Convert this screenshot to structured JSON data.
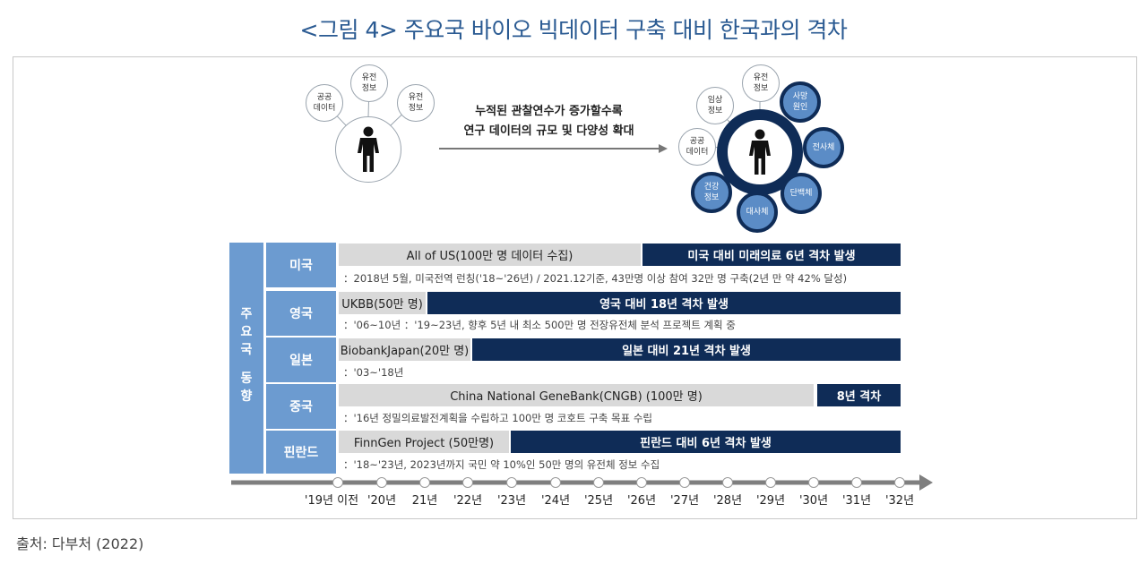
{
  "title": "<그림 4> 주요국 바이오 빅데이터 구축 대비 한국과의 격차",
  "source": "출처: 다부처 (2022)",
  "left_cluster": {
    "bubbles": [
      "공공\n데이터",
      "유전\n정보",
      "유전\n정보"
    ]
  },
  "middle_message": {
    "line1": "누적된 관찰연수가 증가할수록",
    "line2": "연구 데이터의 규모 및 다양성 확대"
  },
  "right_cluster": {
    "white_bubbles": [
      "임상\n정보",
      "유전\n정보",
      "공공\n데이터"
    ],
    "dark_bubbles": [
      "사망\n원인",
      "전사체",
      "단백체",
      "대사체",
      "건강\n정보"
    ]
  },
  "side_label": [
    "주",
    "요",
    "국",
    "",
    "동",
    "향"
  ],
  "rows": [
    {
      "country": "미국",
      "grey": "All of US(100만 명 데이터 수집)",
      "navy": "미국 대비 미래의료 6년 격차 발생",
      "note": "：2018년 5월, 미국전역 런칭('18~'26년) /  2021.12기준, 43만명 이상 참여 32만 명 구축(2년 만 약 42% 달성)"
    },
    {
      "country": "영국",
      "grey": "UKBB(50만 명)",
      "navy": "영국 대비 18년 격차 발생",
      "note": "：'06~10년      ：'19~23년, 향후 5년 내 최소 500만 명 전장유전체 분석 프로젝트 계획 중"
    },
    {
      "country": "일본",
      "grey": "BiobankJapan(20만 명)",
      "navy": "일본 대비 21년 격차 발생",
      "note": "：'03~'18년"
    },
    {
      "country": "중국",
      "grey": "China National GeneBank(CNGB) (100만 명)",
      "navy": "8년 격차",
      "note": "：'16년 정밀의료발전계획을 수립하고 100만 명 코호트 구축 목표 수립"
    },
    {
      "country": "핀란드",
      "grey": "FinnGen Project (50만명)",
      "navy": "핀란드 대비 6년 격차 발생",
      "note": "：'18~'23년, 2023년까지 국민 약 10%인 50만 명의 유전체 정보 수집"
    }
  ],
  "timeline": [
    "'19년 이전",
    "'20년",
    "21년",
    "'22년",
    "'23년",
    "'24년",
    "'25년",
    "'26년",
    "'27년",
    "'28년",
    "'29년",
    "'30년",
    "'31년",
    "'32년"
  ],
  "colors": {
    "navy": "#0f2c57",
    "light_blue": "#6c9bd0",
    "mid_blue": "#5b8cc6",
    "grey": "#d9d9d9",
    "title": "#2a5a92"
  }
}
